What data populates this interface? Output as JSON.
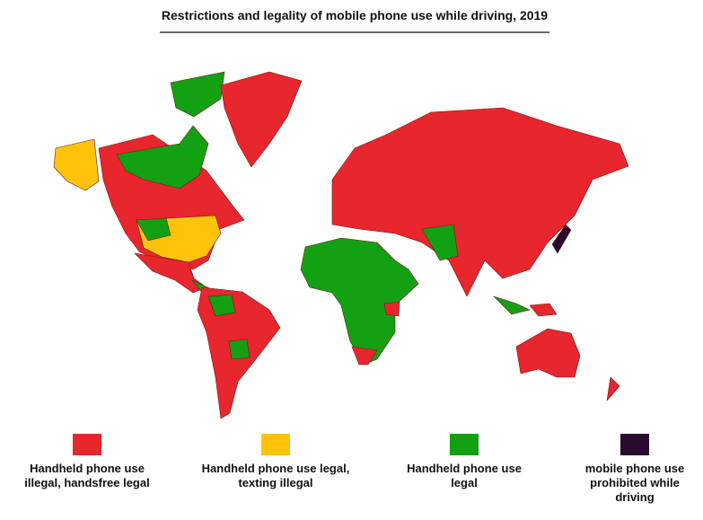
{
  "header": {
    "title": "Restrictions and legality of mobile phone use while driving, 2019"
  },
  "legend": [
    {
      "color": "#e8262d",
      "lines": [
        "Handheld phone use",
        "illegal, handsfree legal"
      ]
    },
    {
      "color": "#ffc30b",
      "lines": [
        "Handheld phone use legal,",
        "texting illegal"
      ]
    },
    {
      "color": "#13a013",
      "lines": [
        "Handheld phone use",
        "legal"
      ]
    },
    {
      "color": "#2a0a2e",
      "lines": [
        "mobile phone use",
        "prohibited while",
        "driving"
      ]
    }
  ]
}
